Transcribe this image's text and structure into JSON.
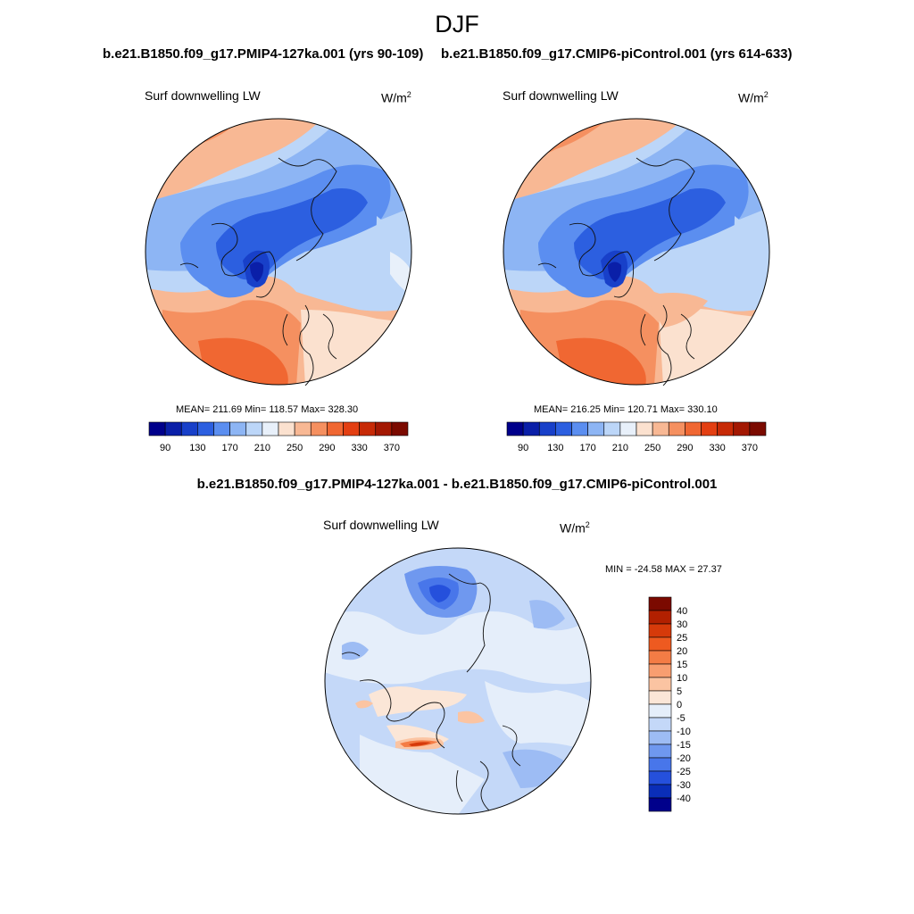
{
  "figure": {
    "season": "DJF",
    "difference_title": "b.e21.B1850.f09_g17.PMIP4-127ka.001 - b.e21.B1850.f09_g17.CMIP6-piControl.001"
  },
  "panels": [
    {
      "case": "b.e21.B1850.f09_g17.PMIP4-127ka.001 (yrs 90-109)",
      "variable": "Surf downwelling LW",
      "units_base": "W/m",
      "units_exp": "2",
      "stats": "MEAN= 211.69  Min= 118.57  Max= 328.30"
    },
    {
      "case": "b.e21.B1850.f09_g17.CMIP6-piControl.001 (yrs 614-633)",
      "variable": "Surf downwelling LW",
      "units_base": "W/m",
      "units_exp": "2",
      "stats": "MEAN= 216.25  Min= 120.71  Max= 330.10"
    },
    {
      "variable": "Surf downwelling LW",
      "units_base": "W/m",
      "units_exp": "2",
      "stats": "MIN = -24.58 MAX =  27.37"
    }
  ],
  "colorbar_abs": {
    "tick_labels": [
      "90",
      "130",
      "170",
      "210",
      "250",
      "290",
      "330",
      "370"
    ],
    "colors": [
      "#00008b",
      "#0a1fa8",
      "#1840c9",
      "#2c5fe0",
      "#5b8ef0",
      "#8db5f4",
      "#bcd6f8",
      "#e8f0fa",
      "#fbe1cf",
      "#f8b894",
      "#f59060",
      "#f06732",
      "#e33f12",
      "#c72a06",
      "#a31802",
      "#7b0a00"
    ]
  },
  "colorbar_diff": {
    "tick_labels": [
      "40",
      "30",
      "25",
      "20",
      "15",
      "10",
      "5",
      "0",
      "-5",
      "-10",
      "-15",
      "-20",
      "-25",
      "-30",
      "-40"
    ],
    "colors": [
      "#7b0a00",
      "#b22000",
      "#d63a0a",
      "#ee5a20",
      "#f47c45",
      "#f89e70",
      "#fbc4a2",
      "#fbe6d7",
      "#e5eefa",
      "#c4d8f8",
      "#9dbcf4",
      "#6f98ef",
      "#4876ea",
      "#2550dc",
      "#0a2eb8",
      "#00008b"
    ]
  }
}
